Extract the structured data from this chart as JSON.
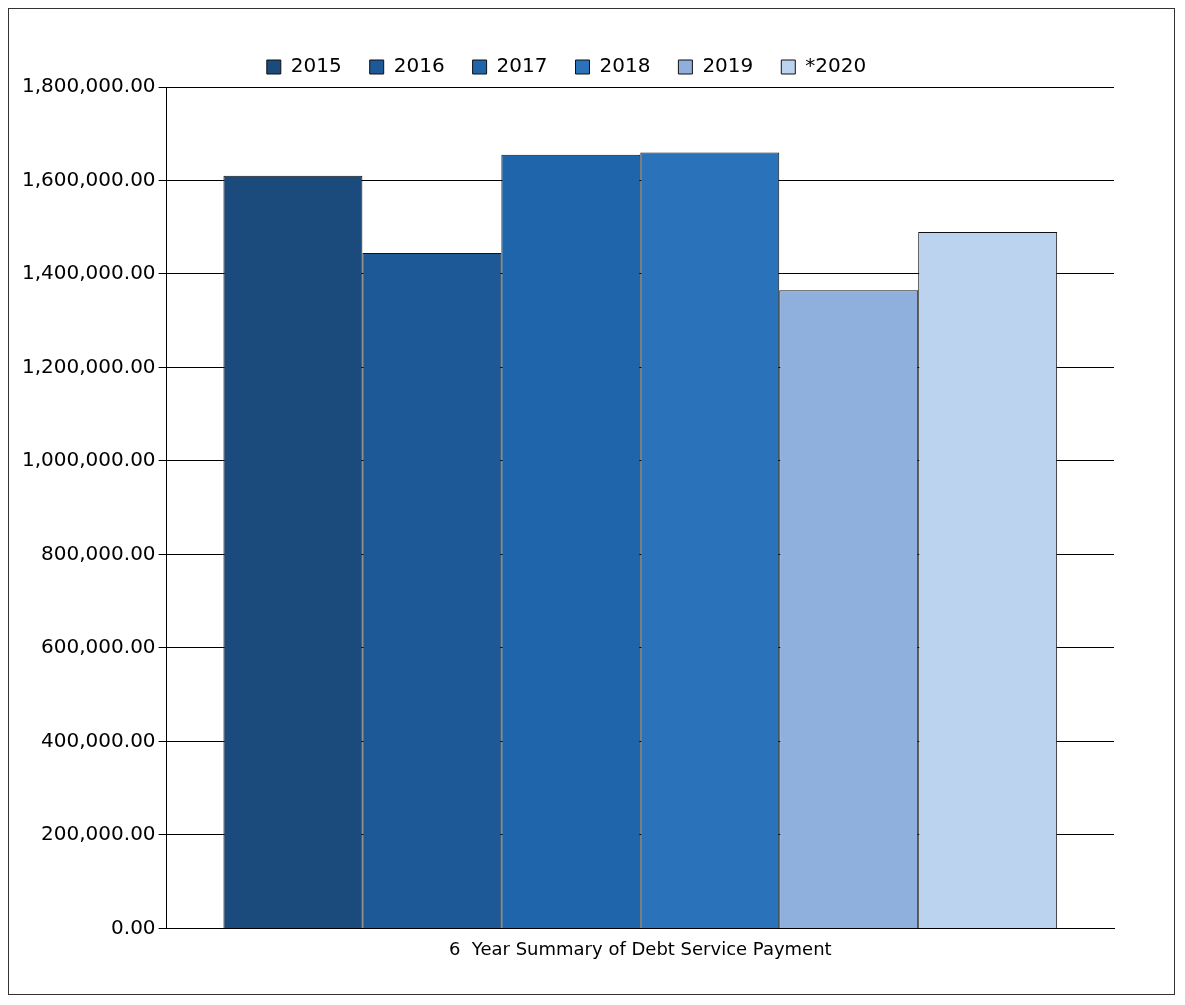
{
  "chart_data": {
    "type": "bar",
    "categories": [
      "6  Year Summary of Debt Service Payment"
    ],
    "series": [
      {
        "name": "2015",
        "color": "#1b4a7c",
        "values": [
          1610000
        ]
      },
      {
        "name": "2016",
        "color": "#1d5997",
        "values": [
          1445000
        ]
      },
      {
        "name": "2017",
        "color": "#1f65ab",
        "values": [
          1655000
        ]
      },
      {
        "name": "2018",
        "color": "#2a72ba",
        "values": [
          1660000
        ]
      },
      {
        "name": "2019",
        "color": "#8fb0dc",
        "values": [
          1365000
        ]
      },
      {
        "name": "*2020",
        "color": "#bcd3ef",
        "values": [
          1490000
        ]
      }
    ],
    "ylim": [
      0,
      1800000
    ],
    "yticks": [
      {
        "value": 0,
        "label": "0.00"
      },
      {
        "value": 200000,
        "label": "200,000.00"
      },
      {
        "value": 400000,
        "label": "400,000.00"
      },
      {
        "value": 600000,
        "label": "600,000.00"
      },
      {
        "value": 800000,
        "label": "800,000.00"
      },
      {
        "value": 1000000,
        "label": "1,000,000.00"
      },
      {
        "value": 1200000,
        "label": "1,200,000.00"
      },
      {
        "value": 1400000,
        "label": "1,400,000.00"
      },
      {
        "value": 1600000,
        "label": "1,600,000.00"
      },
      {
        "value": 1800000,
        "label": "1,800,000.00"
      }
    ],
    "grid": "y",
    "legend": "top"
  }
}
